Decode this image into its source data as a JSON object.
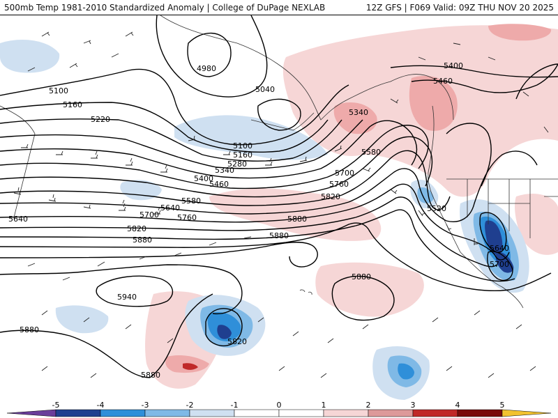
{
  "header": {
    "title": "500mb Temp 1981-2010 Standardized Anomaly | College of DuPage NEXLAB",
    "run_info": "12Z GFS | F069 Valid: 09Z THU NOV 20 2025"
  },
  "colors": {
    "ocean": "#ffffff",
    "coast": "#333333",
    "contour": "#000000",
    "neg5": "#6a3d9a",
    "neg4": "#1f3f8f",
    "neg3": "#2f8fd9",
    "neg2": "#7fb9e6",
    "neg1": "#cfe0f1",
    "pos1": "#f6d6d6",
    "pos2": "#eeaaaa",
    "pos3": "#dd7777",
    "pos4": "#c02828",
    "pos5": "#7a0a0a",
    "pos6": "#f2c230"
  },
  "contours": {
    "c4980": "4980",
    "c5040": "5040",
    "c5100a": "5100",
    "c5100b": "5100",
    "c5160a": "5160",
    "c5160b": "5160",
    "c5220": "5220",
    "c5280": "5280",
    "c5340a": "5340",
    "c5340b": "5340",
    "c5400a": "5400",
    "c5400b": "5400",
    "c5460a": "5460",
    "c5460b": "5460",
    "c5520": "5520",
    "c5580a": "5580",
    "c5580b": "5580",
    "c5640a": "5640",
    "c5640b": "5640",
    "c5640c": "5640",
    "c5700a": "5700",
    "c5700b": "5700",
    "c5700c": "5700",
    "c5760a": "5760",
    "c5760b": "5760",
    "c5820a": "5820",
    "c5820b": "5820",
    "c5820c": "5820",
    "c5880a": "5880",
    "c5880b": "5880",
    "c5880c": "5880",
    "c5880d": "5880",
    "c5880e": "5880",
    "c5880f": "5880",
    "c5940": "5940"
  },
  "legend": {
    "ticks": [
      "-5",
      "-4",
      "-3",
      "-2",
      "-1",
      "0",
      "1",
      "2",
      "3",
      "4",
      "5"
    ]
  }
}
